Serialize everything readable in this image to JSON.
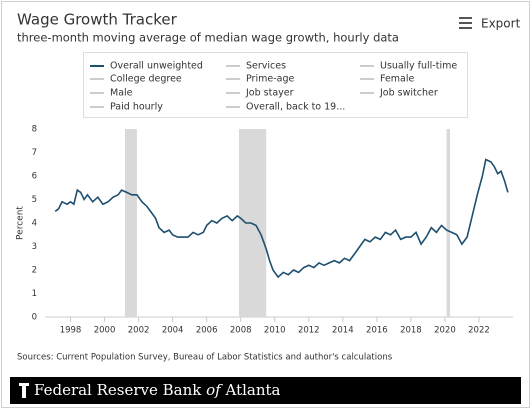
{
  "chart_data": {
    "type": "line",
    "title": "Wage Growth Tracker",
    "subtitle": "three-month moving average of median wage growth, hourly data",
    "y_label": "Percent",
    "xlim": [
      1996.5,
      2024
    ],
    "xticks": [
      1998,
      2000,
      2002,
      2004,
      2006,
      2008,
      2010,
      2012,
      2014,
      2016,
      2018,
      2020,
      2022
    ],
    "ylim": [
      0,
      8
    ],
    "yticks": [
      0,
      1,
      2,
      3,
      4,
      5,
      6,
      7,
      8
    ],
    "grid": false,
    "recessions": [
      [
        2001.2,
        2001.9
      ],
      [
        2007.9,
        2009.5
      ],
      [
        2020.1,
        2020.3
      ]
    ],
    "recession_color": "#d9d9d9",
    "x": [
      1997.1,
      1997.3,
      1997.5,
      1997.8,
      1998.0,
      1998.2,
      1998.4,
      1998.6,
      1998.8,
      1999.0,
      1999.3,
      1999.6,
      1999.9,
      2000.2,
      2000.5,
      2000.8,
      2001.0,
      2001.3,
      2001.6,
      2001.9,
      2002.2,
      2002.5,
      2002.8,
      2003.0,
      2003.2,
      2003.5,
      2003.8,
      2004.0,
      2004.3,
      2004.6,
      2004.9,
      2005.2,
      2005.5,
      2005.8,
      2006.0,
      2006.3,
      2006.6,
      2006.9,
      2007.2,
      2007.5,
      2007.8,
      2008.0,
      2008.3,
      2008.6,
      2008.9,
      2009.2,
      2009.5,
      2009.7,
      2009.9,
      2010.2,
      2010.5,
      2010.8,
      2011.1,
      2011.4,
      2011.7,
      2012.0,
      2012.3,
      2012.6,
      2012.9,
      2013.2,
      2013.5,
      2013.8,
      2014.1,
      2014.4,
      2014.7,
      2015.0,
      2015.3,
      2015.6,
      2015.9,
      2016.2,
      2016.5,
      2016.8,
      2017.1,
      2017.4,
      2017.7,
      2018.0,
      2018.3,
      2018.6,
      2018.9,
      2019.2,
      2019.5,
      2019.8,
      2020.1,
      2020.4,
      2020.7,
      2021.0,
      2021.3,
      2021.6,
      2021.9,
      2022.2,
      2022.4,
      2022.7,
      2022.9,
      2023.1,
      2023.3,
      2023.5,
      2023.7
    ],
    "series": [
      {
        "name": "Overall unweighted",
        "color": "#1d4f6e",
        "values": [
          4.5,
          4.6,
          4.9,
          4.8,
          4.9,
          4.8,
          5.4,
          5.3,
          5.0,
          5.2,
          4.9,
          5.1,
          4.8,
          4.9,
          5.1,
          5.2,
          5.4,
          5.3,
          5.2,
          5.2,
          4.9,
          4.7,
          4.4,
          4.2,
          3.8,
          3.6,
          3.7,
          3.5,
          3.4,
          3.4,
          3.4,
          3.6,
          3.5,
          3.6,
          3.9,
          4.1,
          4.0,
          4.2,
          4.3,
          4.1,
          4.3,
          4.2,
          4.0,
          4.0,
          3.9,
          3.5,
          2.9,
          2.4,
          2.0,
          1.7,
          1.9,
          1.8,
          2.0,
          1.9,
          2.1,
          2.2,
          2.1,
          2.3,
          2.2,
          2.3,
          2.4,
          2.3,
          2.5,
          2.4,
          2.7,
          3.0,
          3.3,
          3.2,
          3.4,
          3.3,
          3.6,
          3.5,
          3.7,
          3.3,
          3.4,
          3.4,
          3.6,
          3.1,
          3.4,
          3.8,
          3.6,
          3.9,
          3.7,
          3.6,
          3.5,
          3.1,
          3.4,
          4.3,
          5.2,
          6.0,
          6.7,
          6.6,
          6.4,
          6.1,
          6.2,
          5.8,
          5.3
        ]
      }
    ],
    "inactive_series": [
      "Services",
      "Usually full-time",
      "College degree",
      "Prime-age",
      "Female",
      "Male",
      "Job stayer",
      "Job switcher",
      "Paid hourly",
      "Overall, back to 19..."
    ],
    "inactive_color": "#cccccc"
  },
  "export": "Export",
  "source": "Sources: Current Population Survey, Bureau of Labor Statistics and author's calculations",
  "footer": {
    "start": "Federal Reserve Bank",
    "italic": "of",
    "end": "Atlanta"
  }
}
